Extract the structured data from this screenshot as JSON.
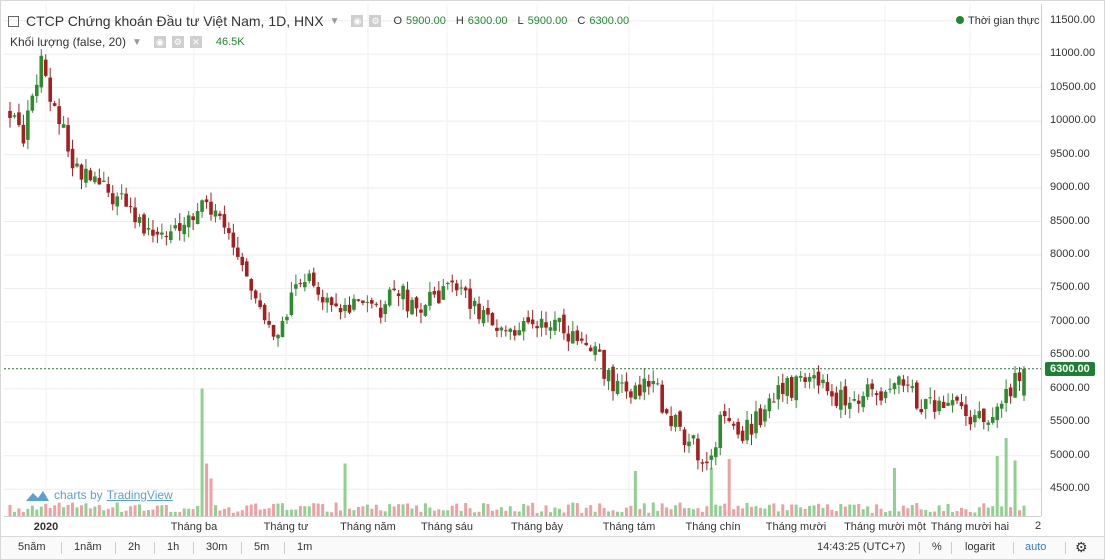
{
  "legend": {
    "symbol_title": "CTCP Chứng khoán Đầu tư Việt Nam, 1D, HNX",
    "open_key": "O",
    "open": "5900.00",
    "high_key": "H",
    "high": "6300.00",
    "low_key": "L",
    "low": "5900.00",
    "close_key": "C",
    "close": "6300.00"
  },
  "volume_legend": {
    "label": "Khối lượng (false, 20)",
    "value": "46.5K"
  },
  "realtime_label": "Thời gian thực",
  "watermark": {
    "prefix": "charts by",
    "brand": "TradingView"
  },
  "last_price_tag": "6300.00",
  "bottom_bar": {
    "timeframes": [
      "5năm",
      "1năm",
      "2h",
      "1h",
      "30m",
      "5m",
      "1m"
    ],
    "clock": "14:43:25 (UTC+7)",
    "percent": "%",
    "log": "logarit",
    "auto": "auto",
    "settings_icon": "gear-icon"
  },
  "resize_glyph": "2",
  "colors": {
    "up": "#2e8b2e",
    "down": "#a61e1e",
    "vol_up": "#8fd18f",
    "vol_down": "#f0a0a0",
    "last_line": "#1e7e34",
    "accent": "#2f80c8"
  },
  "chart_data": {
    "type": "candlestick",
    "title": "CTCP Chứng khoán Đầu tư Việt Nam, 1D, HNX",
    "y_ticks": [
      "11500.00",
      "11000.00",
      "10500.00",
      "10000.00",
      "9500.00",
      "9000.00",
      "8500.00",
      "8000.00",
      "7500.00",
      "7000.00",
      "6500.00",
      "6000.00",
      "5500.00",
      "5000.00",
      "4500.00"
    ],
    "x_labels": [
      "2020",
      "Tháng ba",
      "Tháng tư",
      "Tháng năm",
      "Tháng sáu",
      "Tháng bảy",
      "Tháng tám",
      "Tháng chín",
      "Tháng mười",
      "Tháng mười một",
      "Tháng mười hai"
    ],
    "ylim": [
      4100,
      11750
    ],
    "last_price": 6300,
    "grid": true,
    "trend_anchors": [
      [
        1,
        10150
      ],
      [
        4,
        9800
      ],
      [
        8,
        10900
      ],
      [
        11,
        10200
      ],
      [
        15,
        9400
      ],
      [
        20,
        9100
      ],
      [
        25,
        8900
      ],
      [
        30,
        8500
      ],
      [
        35,
        8300
      ],
      [
        40,
        8400
      ],
      [
        44,
        8700
      ],
      [
        48,
        8500
      ],
      [
        52,
        7900
      ],
      [
        56,
        7300
      ],
      [
        60,
        6800
      ],
      [
        64,
        7300
      ],
      [
        68,
        7700
      ],
      [
        72,
        7300
      ],
      [
        76,
        7200
      ],
      [
        80,
        7300
      ],
      [
        84,
        7200
      ],
      [
        88,
        7500
      ],
      [
        92,
        7100
      ],
      [
        96,
        7400
      ],
      [
        100,
        7600
      ],
      [
        104,
        7300
      ],
      [
        108,
        7100
      ],
      [
        112,
        6900
      ],
      [
        116,
        6900
      ],
      [
        120,
        7100
      ],
      [
        124,
        6900
      ],
      [
        128,
        6800
      ],
      [
        132,
        6600
      ],
      [
        136,
        6100
      ],
      [
        140,
        5900
      ],
      [
        144,
        6100
      ],
      [
        148,
        5700
      ],
      [
        152,
        5300
      ],
      [
        156,
        5000
      ],
      [
        158,
        4900
      ],
      [
        160,
        5600
      ],
      [
        164,
        5300
      ],
      [
        168,
        5500
      ],
      [
        172,
        5900
      ],
      [
        176,
        6000
      ],
      [
        180,
        6200
      ],
      [
        184,
        6000
      ],
      [
        188,
        5800
      ],
      [
        192,
        5900
      ],
      [
        196,
        5900
      ],
      [
        200,
        6100
      ],
      [
        204,
        5800
      ],
      [
        208,
        5700
      ],
      [
        212,
        5800
      ],
      [
        216,
        5600
      ],
      [
        220,
        5500
      ],
      [
        224,
        5900
      ],
      [
        228,
        6300
      ]
    ],
    "candle_count": 228,
    "volume_spikes": [
      [
        44,
        0.85
      ],
      [
        45,
        0.35
      ],
      [
        46,
        0.25
      ],
      [
        76,
        0.35
      ],
      [
        141,
        0.3
      ],
      [
        158,
        0.32
      ],
      [
        162,
        0.38
      ],
      [
        199,
        0.32
      ],
      [
        222,
        0.4
      ],
      [
        224,
        0.52
      ],
      [
        226,
        0.37
      ]
    ]
  }
}
